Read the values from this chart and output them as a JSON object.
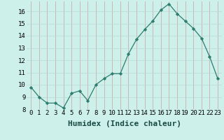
{
  "x": [
    0,
    1,
    2,
    3,
    4,
    5,
    6,
    7,
    8,
    9,
    10,
    11,
    12,
    13,
    14,
    15,
    16,
    17,
    18,
    19,
    20,
    21,
    22,
    23
  ],
  "y": [
    9.8,
    9.0,
    8.5,
    8.5,
    8.1,
    9.3,
    9.5,
    8.7,
    10.0,
    10.5,
    10.9,
    10.9,
    12.5,
    13.7,
    14.5,
    15.2,
    16.1,
    16.6,
    15.8,
    15.2,
    14.6,
    13.8,
    12.3,
    10.5
  ],
  "xlabel": "Humidex (Indice chaleur)",
  "xlim": [
    -0.5,
    23.5
  ],
  "ylim": [
    8,
    16.8
  ],
  "yticks": [
    8,
    9,
    10,
    11,
    12,
    13,
    14,
    15,
    16
  ],
  "xticks": [
    0,
    1,
    2,
    3,
    4,
    5,
    6,
    7,
    8,
    9,
    10,
    11,
    12,
    13,
    14,
    15,
    16,
    17,
    18,
    19,
    20,
    21,
    22,
    23
  ],
  "xtick_labels": [
    "0",
    "1",
    "2",
    "3",
    "4",
    "5",
    "6",
    "7",
    "8",
    "9",
    "10",
    "11",
    "12",
    "13",
    "14",
    "15",
    "16",
    "17",
    "18",
    "19",
    "20",
    "21",
    "22",
    "23"
  ],
  "line_color": "#2e7d6e",
  "marker_color": "#2e7d6e",
  "bg_color": "#cdf0ea",
  "grid_color_major": "#c8a0a0",
  "grid_color_minor": "#b8d8d4",
  "xlabel_fontsize": 8,
  "tick_fontsize": 6.5
}
